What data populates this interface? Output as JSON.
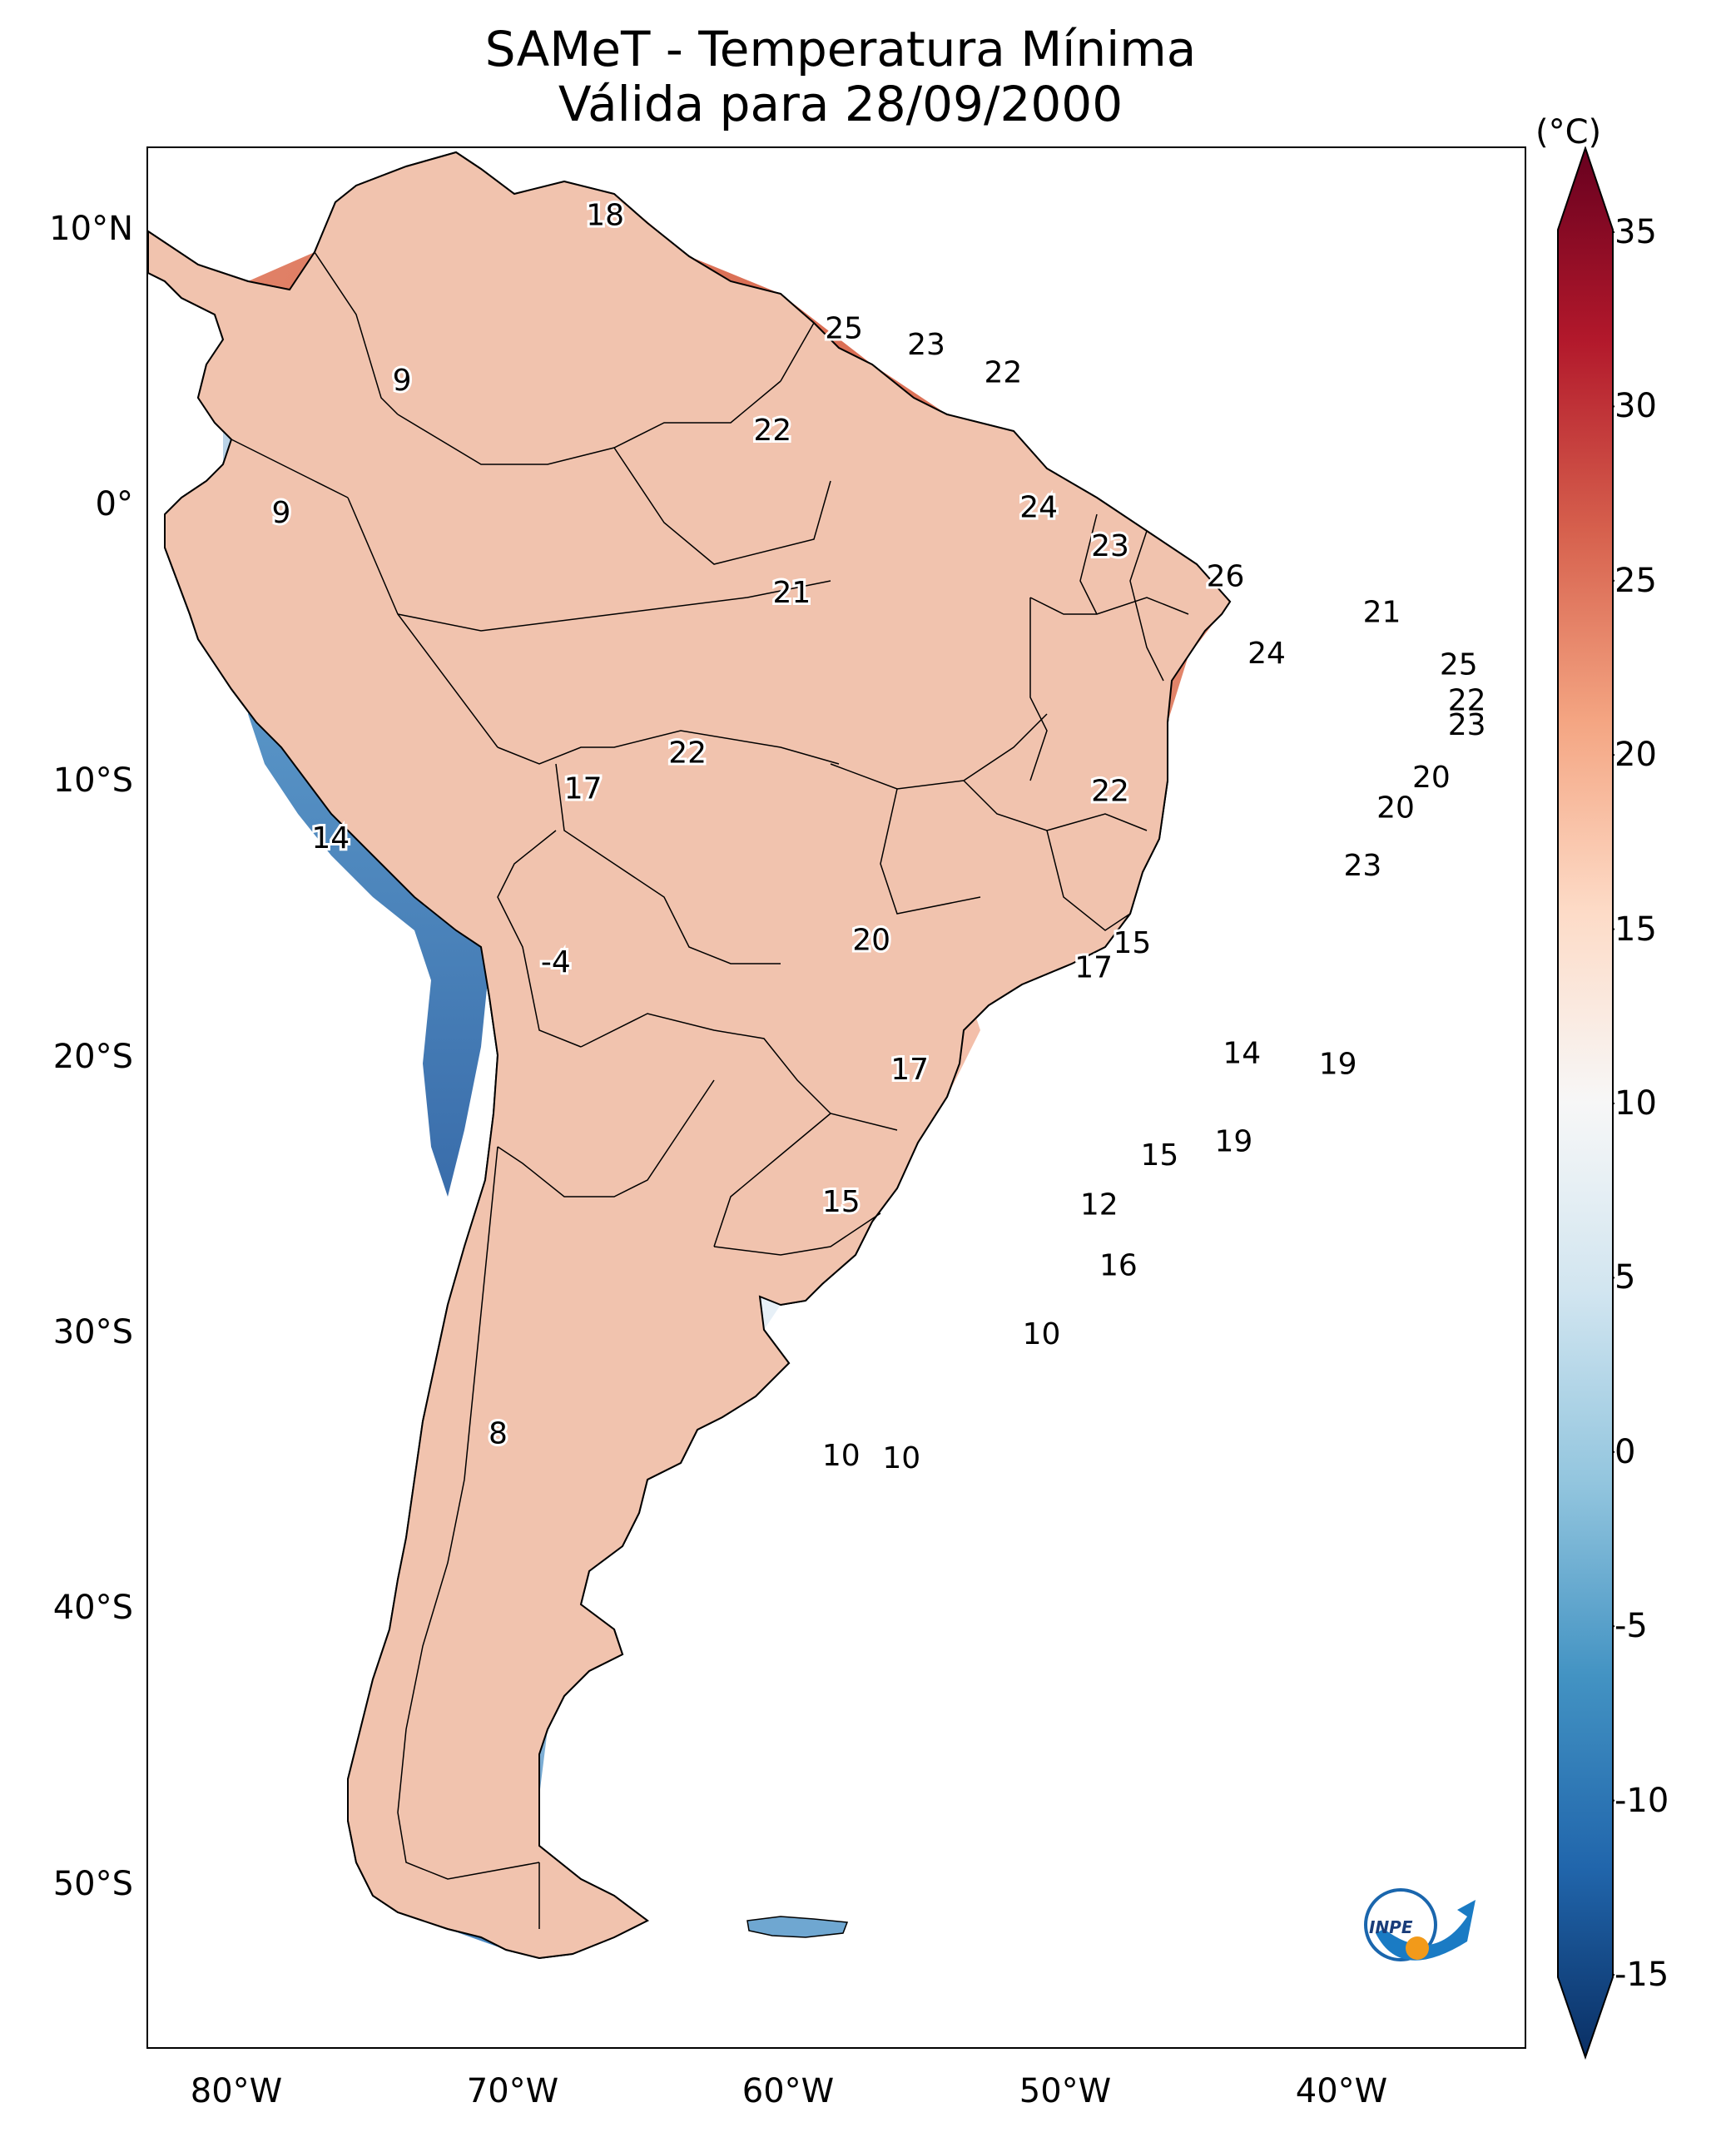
{
  "title": {
    "line1": "SAMeT - Temperatura Mínima",
    "line2": "Válida para 28/09/2000"
  },
  "axes": {
    "lat_labels": [
      "10°N",
      "0°",
      "10°S",
      "20°S",
      "30°S",
      "40°S",
      "50°S"
    ],
    "lon_labels": [
      "80°W",
      "70°W",
      "60°W",
      "50°W",
      "40°W"
    ]
  },
  "colorbar": {
    "unit": "(°C)",
    "ticks": [
      "35",
      "30",
      "25",
      "20",
      "15",
      "10",
      "5",
      "0",
      "-5",
      "-10",
      "-15"
    ],
    "range": [
      -15,
      35
    ],
    "colors": [
      "#0a2f64",
      "#2166ac",
      "#4393c3",
      "#92c5de",
      "#d1e5f0",
      "#f7f7f7",
      "#fddbc7",
      "#f4a582",
      "#d6604d",
      "#b2182b",
      "#67001f"
    ]
  },
  "map_colors": {
    "north_warm": "#dc7a60",
    "central_warm": "#e9987e",
    "south_light": "#f6d6c6",
    "cool_light": "#dde9f2",
    "andes_blue": "#5a93c4",
    "andes_deep": "#2f65a6",
    "patagonia_blue": "#4e8fc5"
  },
  "annotations": [
    {
      "value": "18",
      "lon": -66.5,
      "lat": 10.6
    },
    {
      "value": "25",
      "lon": -57.8,
      "lat": 6.5
    },
    {
      "value": "23",
      "lon": -54.8,
      "lat": 5.9
    },
    {
      "value": "22",
      "lon": -52.0,
      "lat": 4.9
    },
    {
      "value": "9",
      "lon": -73.9,
      "lat": 4.6
    },
    {
      "value": "22",
      "lon": -60.4,
      "lat": 2.8
    },
    {
      "value": "9",
      "lon": -78.3,
      "lat": -0.2
    },
    {
      "value": "24",
      "lon": -50.7,
      "lat": 0.0
    },
    {
      "value": "23",
      "lon": -48.1,
      "lat": -1.4
    },
    {
      "value": "21",
      "lon": -59.7,
      "lat": -3.1
    },
    {
      "value": "26",
      "lon": -43.9,
      "lat": -2.5
    },
    {
      "value": "21",
      "lon": -38.2,
      "lat": -3.8
    },
    {
      "value": "24",
      "lon": -42.4,
      "lat": -5.3
    },
    {
      "value": "25",
      "lon": -35.4,
      "lat": -5.7
    },
    {
      "value": "22",
      "lon": -35.1,
      "lat": -7.0
    },
    {
      "value": "23",
      "lon": -35.1,
      "lat": -7.9
    },
    {
      "value": "22",
      "lon": -63.5,
      "lat": -8.9
    },
    {
      "value": "22",
      "lon": -48.1,
      "lat": -10.3
    },
    {
      "value": "20",
      "lon": -36.4,
      "lat": -9.8
    },
    {
      "value": "17",
      "lon": -67.3,
      "lat": -10.2
    },
    {
      "value": "20",
      "lon": -37.7,
      "lat": -10.9
    },
    {
      "value": "14",
      "lon": -76.5,
      "lat": -12.0
    },
    {
      "value": "23",
      "lon": -38.9,
      "lat": -13.0
    },
    {
      "value": "-4",
      "lon": -68.3,
      "lat": -16.5
    },
    {
      "value": "20",
      "lon": -56.8,
      "lat": -15.7
    },
    {
      "value": "15",
      "lon": -47.3,
      "lat": -15.8
    },
    {
      "value": "17",
      "lon": -48.7,
      "lat": -16.7
    },
    {
      "value": "14",
      "lon": -43.3,
      "lat": -19.8
    },
    {
      "value": "17",
      "lon": -55.4,
      "lat": -20.4
    },
    {
      "value": "19",
      "lon": -39.8,
      "lat": -20.2
    },
    {
      "value": "19",
      "lon": -43.6,
      "lat": -23.0
    },
    {
      "value": "15",
      "lon": -46.3,
      "lat": -23.5
    },
    {
      "value": "15",
      "lon": -57.9,
      "lat": -25.2
    },
    {
      "value": "12",
      "lon": -48.5,
      "lat": -25.3
    },
    {
      "value": "16",
      "lon": -47.8,
      "lat": -27.5
    },
    {
      "value": "10",
      "lon": -50.6,
      "lat": -30.0
    },
    {
      "value": "8",
      "lon": -70.4,
      "lat": -33.6
    },
    {
      "value": "10",
      "lon": -57.9,
      "lat": -34.4
    },
    {
      "value": "10",
      "lon": -55.7,
      "lat": -34.5
    }
  ]
}
